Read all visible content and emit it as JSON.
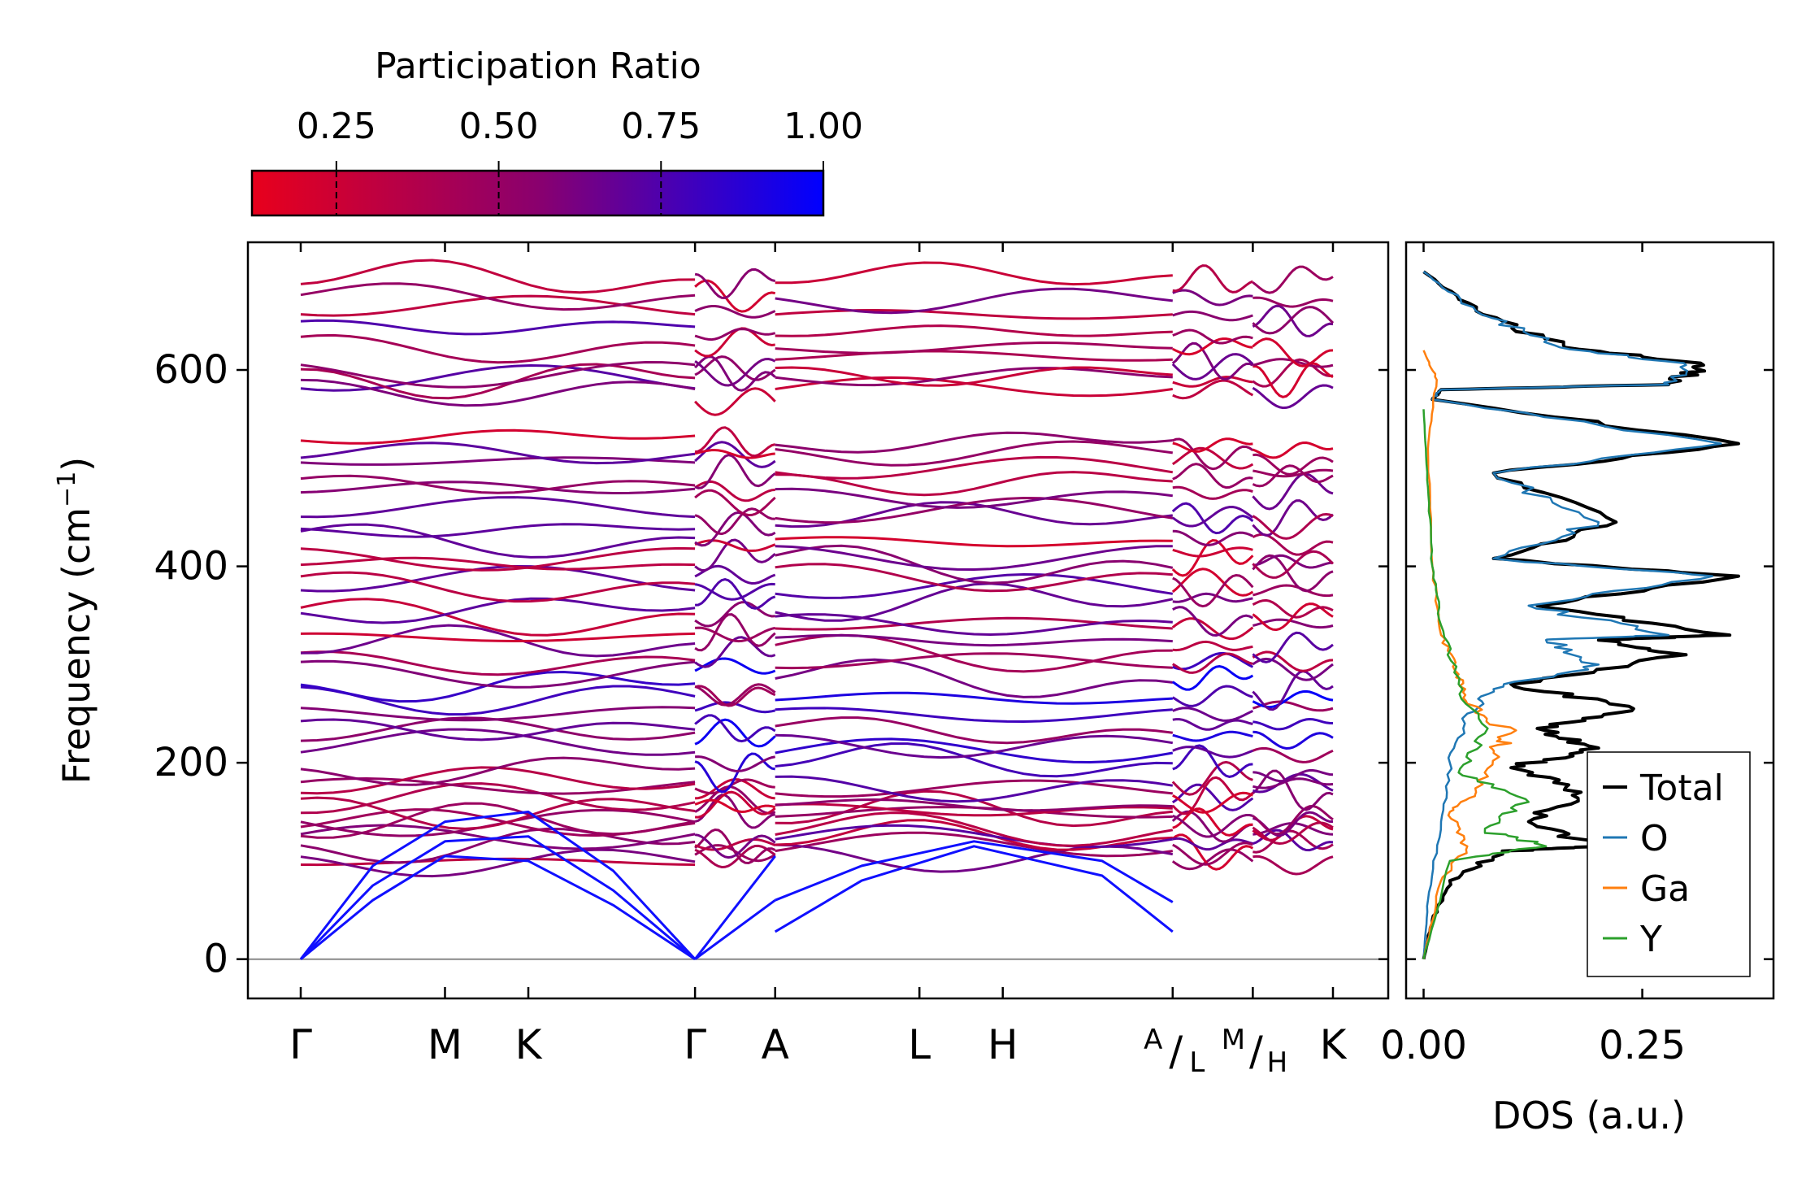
{
  "chart_data": [
    {
      "type": "line",
      "name": "phonon-band-structure",
      "ylabel": "Frequency (cm",
      "ylabel_sup": "−1",
      "ylabel_tail": ")",
      "ylim": [
        -40,
        730
      ],
      "yticks": [
        0,
        200,
        400,
        600
      ],
      "ytick_labels": [
        "0",
        "200",
        "400",
        "600"
      ],
      "kpath_segments": [
        [
          0,
          2.2
        ],
        [
          2.2,
          5.8
        ],
        [
          5.8,
          6.8
        ]
      ],
      "kpoints": [
        {
          "label": "Γ",
          "x": 0.0
        },
        {
          "label": "M",
          "x": 0.9
        },
        {
          "label": "K",
          "x": 1.42
        },
        {
          "label": "Γ",
          "x": 2.46
        },
        {
          "label": "A",
          "x": 2.96
        },
        {
          "label": "L",
          "x": 3.86
        },
        {
          "label": "H",
          "x": 4.38
        },
        {
          "label": "",
          "x": 5.44
        },
        {
          "label": "",
          "x": 5.94
        },
        {
          "label": "K",
          "x": 6.44
        }
      ],
      "split_labels": [
        {
          "top": "A",
          "bottom": "L",
          "x": 5.44
        },
        {
          "top": "M",
          "bottom": "H",
          "x": 5.94
        }
      ],
      "segments": [
        {
          "x0": 0.0,
          "x1": 2.46
        },
        {
          "x0": 2.46,
          "x1": 2.96
        },
        {
          "x0": 2.96,
          "x1": 5.44
        },
        {
          "x0": 5.44,
          "x1": 5.94
        },
        {
          "x0": 5.94,
          "x1": 6.44
        }
      ],
      "acoustic_branches": [
        {
          "name": "LA",
          "xs": [
            0,
            0.45,
            0.9,
            1.42,
            1.95,
            2.46
          ],
          "ys": [
            0,
            75,
            120,
            125,
            70,
            0
          ]
        },
        {
          "name": "TA1",
          "xs": [
            0,
            0.45,
            0.9,
            1.42,
            1.95,
            2.46
          ],
          "ys": [
            0,
            60,
            105,
            100,
            55,
            0
          ]
        },
        {
          "name": "TA2",
          "xs": [
            0,
            0.45,
            0.9,
            1.42,
            1.95,
            2.46
          ],
          "ys": [
            0,
            95,
            140,
            150,
            90,
            0
          ]
        },
        {
          "name": "A-branch-1",
          "xs": [
            2.46,
            2.96
          ],
          "ys": [
            0,
            105
          ]
        },
        {
          "name": "A-branch-2",
          "xs": [
            2.46,
            2.96
          ],
          "ys": [
            0,
            60
          ]
        },
        {
          "name": "A-L-low-1",
          "xs": [
            2.96,
            3.5,
            4.2,
            5.0,
            5.44
          ],
          "ys": [
            28,
            80,
            115,
            85,
            28
          ]
        },
        {
          "name": "A-L-low-2",
          "xs": [
            2.96,
            3.5,
            4.2,
            5.0,
            5.44
          ],
          "ys": [
            60,
            95,
            120,
            100,
            58
          ]
        }
      ],
      "optical_band_centers": [
        100,
        108,
        115,
        122,
        130,
        138,
        145,
        155,
        162,
        170,
        180,
        195,
        210,
        225,
        240,
        255,
        270,
        280,
        295,
        310,
        322,
        335,
        348,
        360,
        375,
        390,
        400,
        415,
        430,
        445,
        460,
        475,
        490,
        505,
        515,
        525,
        580,
        590,
        600,
        610,
        625,
        640,
        655,
        672,
        690
      ],
      "colorbar": {
        "label": "Participation Ratio",
        "ticks": [
          0.25,
          0.5,
          0.75,
          1.0
        ],
        "tick_labels": [
          "0.25",
          "0.50",
          "0.75",
          "1.00"
        ],
        "range": [
          0.12,
          1.0
        ],
        "color_low": "#e8001c",
        "color_mid": "#8a006e",
        "color_high": "#0000ff"
      }
    },
    {
      "type": "line",
      "name": "phonon-dos",
      "xlabel": "DOS (a.u.)",
      "xlim": [
        -0.02,
        0.4
      ],
      "xticks": [
        0.0,
        0.25
      ],
      "xtick_labels": [
        "0.00",
        "0.25"
      ],
      "ylim": [
        -40,
        730
      ],
      "series": [
        {
          "name": "Total",
          "color": "#000000",
          "points": [
            [
              0,
              0
            ],
            [
              0.01,
              40
            ],
            [
              0.03,
              80
            ],
            [
              0.09,
              110
            ],
            [
              0.2,
              115
            ],
            [
              0.12,
              140
            ],
            [
              0.18,
              170
            ],
            [
              0.1,
              195
            ],
            [
              0.2,
              215
            ],
            [
              0.13,
              235
            ],
            [
              0.24,
              255
            ],
            [
              0.1,
              280
            ],
            [
              0.3,
              310
            ],
            [
              0.2,
              325
            ],
            [
              0.35,
              330
            ],
            [
              0.13,
              360
            ],
            [
              0.36,
              390
            ],
            [
              0.08,
              408
            ],
            [
              0.22,
              445
            ],
            [
              0.08,
              495
            ],
            [
              0.36,
              525
            ],
            [
              0.01,
              570
            ],
            [
              0.02,
              580
            ],
            [
              0.28,
              585
            ],
            [
              0.32,
              605
            ],
            [
              0.16,
              625
            ],
            [
              0.06,
              660
            ],
            [
              0.0,
              700
            ]
          ]
        },
        {
          "name": "O",
          "color": "#1f77b4",
          "points": [
            [
              0,
              0
            ],
            [
              0.005,
              60
            ],
            [
              0.02,
              140
            ],
            [
              0.03,
              200
            ],
            [
              0.05,
              250
            ],
            [
              0.08,
              275
            ],
            [
              0.2,
              300
            ],
            [
              0.14,
              325
            ],
            [
              0.28,
              330
            ],
            [
              0.12,
              360
            ],
            [
              0.33,
              390
            ],
            [
              0.08,
              408
            ],
            [
              0.2,
              445
            ],
            [
              0.08,
              495
            ],
            [
              0.34,
              525
            ],
            [
              0.01,
              570
            ],
            [
              0.02,
              580
            ],
            [
              0.28,
              585
            ],
            [
              0.3,
              605
            ],
            [
              0.15,
              625
            ],
            [
              0.06,
              660
            ],
            [
              0.0,
              700
            ]
          ]
        },
        {
          "name": "Ga",
          "color": "#ff7f0e",
          "points": [
            [
              0,
              0
            ],
            [
              0.02,
              80
            ],
            [
              0.05,
              115
            ],
            [
              0.03,
              150
            ],
            [
              0.06,
              170
            ],
            [
              0.08,
              210
            ],
            [
              0.1,
              230
            ],
            [
              0.05,
              260
            ],
            [
              0.04,
              290
            ],
            [
              0.02,
              330
            ],
            [
              0.01,
              400
            ],
            [
              0.005,
              520
            ],
            [
              0.015,
              590
            ],
            [
              0.0,
              620
            ]
          ]
        },
        {
          "name": "Y",
          "color": "#2ca02c",
          "points": [
            [
              0,
              0
            ],
            [
              0.03,
              100
            ],
            [
              0.14,
              115
            ],
            [
              0.07,
              130
            ],
            [
              0.12,
              160
            ],
            [
              0.04,
              190
            ],
            [
              0.07,
              230
            ],
            [
              0.04,
              280
            ],
            [
              0.02,
              340
            ],
            [
              0.01,
              400
            ],
            [
              0.005,
              480
            ],
            [
              0.0,
              560
            ]
          ]
        }
      ],
      "legend": {
        "position": "lower-right",
        "entries": [
          "Total",
          "O",
          "Ga",
          "Y"
        ]
      }
    }
  ]
}
